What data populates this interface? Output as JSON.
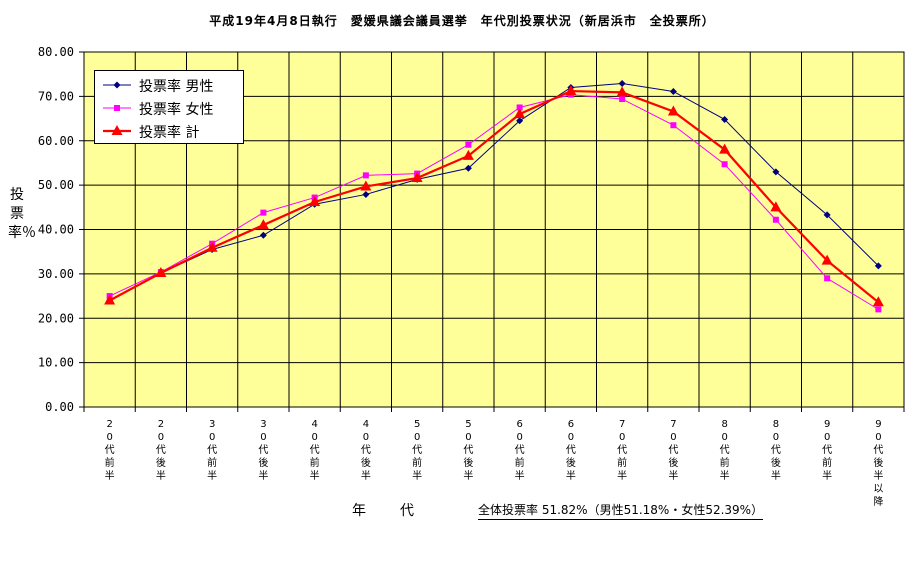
{
  "chart_data": {
    "type": "line",
    "title": "平成19年4月8日執行　愛媛県議会議員選挙　年代別投票状況（新居浜市　全投票所）",
    "ylabel": "投票率％",
    "xlabel": "年　代",
    "ylim": [
      0,
      80
    ],
    "yticks": [
      "0.00",
      "10.00",
      "20.00",
      "30.00",
      "40.00",
      "50.00",
      "60.00",
      "70.00",
      "80.00"
    ],
    "categories": [
      "20代前半",
      "20代後半",
      "30代前半",
      "30代後半",
      "40代前半",
      "40代後半",
      "50代前半",
      "50代後半",
      "60代前半",
      "60代後半",
      "70代前半",
      "70代後半",
      "80代前半",
      "80代後半",
      "90代前半",
      "90代後半以降"
    ],
    "series": [
      {
        "name": "投票率 男性",
        "color": "#000080",
        "marker": "diamond",
        "values": [
          24.0,
          30.2,
          35.5,
          38.7,
          45.7,
          47.9,
          51.3,
          53.8,
          64.5,
          72.0,
          72.9,
          71.1,
          64.8,
          53.0,
          43.3,
          31.8
        ]
      },
      {
        "name": "投票率 女性",
        "color": "#ff00ff",
        "marker": "square",
        "values": [
          25.0,
          30.4,
          36.8,
          43.8,
          47.2,
          52.2,
          52.6,
          59.1,
          67.5,
          70.4,
          69.4,
          63.5,
          54.7,
          42.2,
          29.0,
          22.0
        ]
      },
      {
        "name": "投票率 計",
        "color": "#ff0000",
        "marker": "triangle",
        "values": [
          24.0,
          30.2,
          35.9,
          41.0,
          46.2,
          49.7,
          51.6,
          56.6,
          66.0,
          71.2,
          70.9,
          66.6,
          58.0,
          45.0,
          33.0,
          23.6
        ]
      }
    ],
    "grid": true,
    "legend_position": "top-left",
    "plot_background": "#ffff99"
  },
  "footer": {
    "overall_turnout": "全体投票率 51.82%（男性51.18%・女性52.39%）"
  }
}
